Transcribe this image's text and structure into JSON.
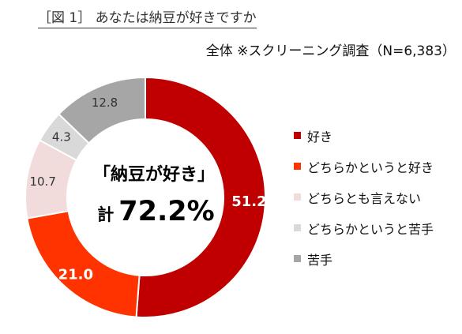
{
  "header": {
    "title": "［図 1］ あなたは納豆が好きですか",
    "subtitle": "全体 ※スクリーニング調査（N=6,383）"
  },
  "center": {
    "headline": "「納豆が好き」",
    "total_prefix": "計",
    "total_value": "72.2%"
  },
  "chart_data": {
    "type": "pie",
    "donut": true,
    "title": "［図 1］ あなたは納豆が好きですか",
    "subtitle": "全体 ※スクリーニング調査（N=6,383）",
    "legend_position": "right",
    "slices": [
      {
        "label": "好き",
        "value": 51.2,
        "color": "#C00000",
        "label_color": "#FFFFFF"
      },
      {
        "label": "どちらかというと好き",
        "value": 21.0,
        "color": "#FF3300",
        "label_color": "#FFFFFF"
      },
      {
        "label": "どちらとも言えない",
        "value": 10.7,
        "color": "#F2DCDB",
        "label_color": "#333333"
      },
      {
        "label": "どちらかというと苦手",
        "value": 4.3,
        "color": "#D9D9D9",
        "label_color": "#333333"
      },
      {
        "label": "苦手",
        "value": 12.8,
        "color": "#A6A6A6",
        "label_color": "#333333"
      }
    ]
  }
}
